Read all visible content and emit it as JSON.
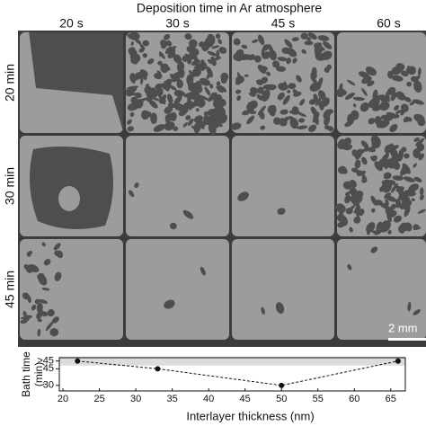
{
  "header": {
    "title": "Deposition time in Ar atmosphere"
  },
  "columns": [
    "20 s",
    "30 s",
    "45 s",
    "60 s"
  ],
  "rows": [
    "20 min",
    "30 min",
    "45 min"
  ],
  "scale_bar": "2 mm",
  "chart_data": {
    "type": "line",
    "xlabel": "Interlayer thickness (nm)",
    "ylabel": [
      "Bath time",
      "(min)"
    ],
    "x": [
      22,
      33,
      50,
      66
    ],
    "series": [
      {
        "color": "#111111",
        "values": [
          52,
          45,
          30,
          52
        ]
      }
    ],
    "xlim": [
      19.5,
      67
    ],
    "xticks": [
      20,
      25,
      30,
      35,
      40,
      45,
      50,
      55,
      60,
      65
    ],
    "ylim": [
      25,
      55
    ],
    "yticks": [
      30,
      45,
      {
        "value": 52,
        "label": ">45"
      }
    ]
  }
}
